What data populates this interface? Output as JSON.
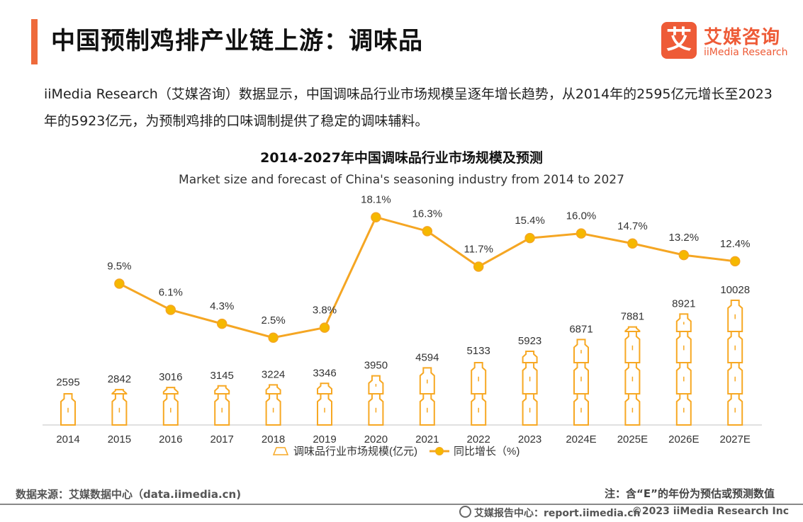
{
  "page": {
    "title": "中国预制鸡排产业链上游：调味品",
    "intro": "iiMedia Research（艾媒咨询）数据显示，中国调味品行业市场规模呈逐年增长趋势，从2014年的2595亿元增长至2023年的5923亿元，为预制鸡排的口味调制提供了稳定的调味辅料。",
    "source": "数据来源：艾媒数据中心（data.iimedia.cn)",
    "note": "注：含“E”的年份为预估或预测数值",
    "footer_report": "艾媒报告中心：report.iimedia.cn",
    "footer_copyright": "©2023  iiMedia Research  Inc"
  },
  "logo": {
    "mark": "艾",
    "cn": "艾媒咨询",
    "en": "iiMedia Research"
  },
  "colors": {
    "accent": "#ee6a3b",
    "bottle": "#f7a823",
    "line": "#f5a623",
    "brand": "#ee5b37"
  },
  "chart_data": {
    "type": "bar",
    "title": "2014-2027年中国调味品行业市场规模及预测",
    "subtitle": "Market size and forecast of China's seasoning industry from 2014 to 2027",
    "categories": [
      "2014",
      "2015",
      "2016",
      "2017",
      "2018",
      "2019",
      "2020",
      "2021",
      "2022",
      "2023",
      "2024E",
      "2025E",
      "2026E",
      "2027E"
    ],
    "series": [
      {
        "name": "调味品行业市场规模(亿元)",
        "type": "bar",
        "values": [
          2595,
          2842,
          3016,
          3145,
          3224,
          3346,
          3950,
          4594,
          5133,
          5923,
          6871,
          7881,
          8921,
          10028
        ],
        "labels": [
          "2595",
          "2842",
          "3016",
          "3145",
          "3224",
          "3346",
          "3950",
          "4594",
          "5133",
          "5923",
          "6871",
          "7881",
          "8921",
          "10028"
        ]
      },
      {
        "name": "同比增长（%)",
        "type": "line",
        "values": [
          null,
          9.5,
          6.1,
          4.3,
          2.5,
          3.8,
          18.1,
          16.3,
          11.7,
          15.4,
          16.0,
          14.7,
          13.2,
          12.4
        ],
        "labels": [
          "",
          "9.5%",
          "6.1%",
          "4.3%",
          "2.5%",
          "3.8%",
          "18.1%",
          "16.3%",
          "11.7%",
          "15.4%",
          "16.0%",
          "14.7%",
          "13.2%",
          "12.4%"
        ]
      }
    ],
    "legend_position": "bottom",
    "grid": false
  }
}
